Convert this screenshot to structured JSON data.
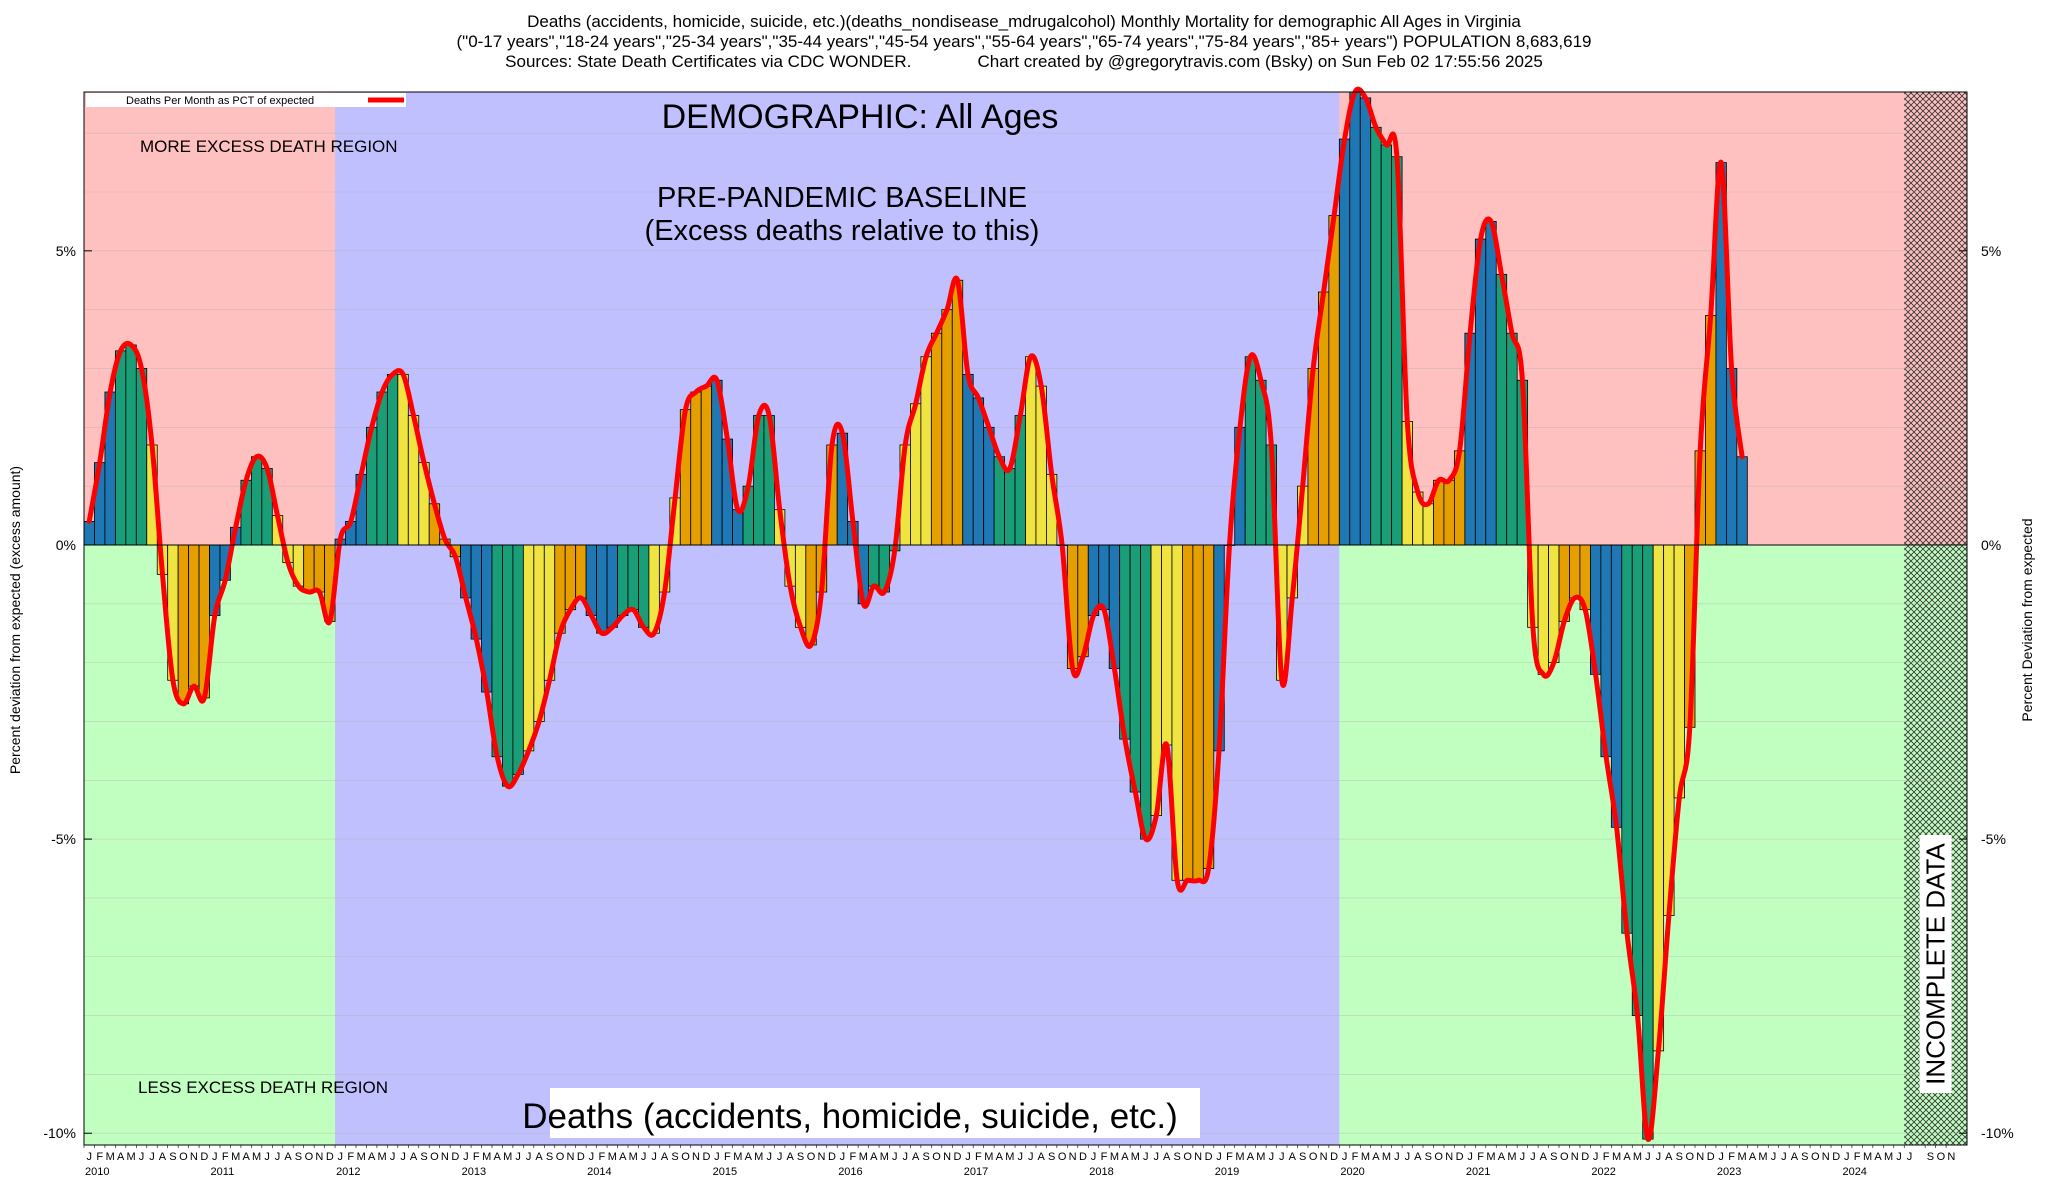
{
  "titles": {
    "line1": "Deaths (accidents, homicide, suicide, etc.)(deaths_nondisease_mdrugalcohol) Monthly Mortality for demographic All Ages in Virginia",
    "line2": "(\"0-17 years\",\"18-24 years\",\"25-34 years\",\"35-44 years\",\"45-54 years\",\"55-64 years\",\"65-74 years\",\"75-84 years\",\"85+ years\") POPULATION 8,683,619",
    "line3": "Sources: State Death Certificates via CDC WONDER.              Chart created by @gregorytravis.com (Bsky) on Sun Feb 02 17:55:56 2025"
  },
  "labels": {
    "legend": "Deaths Per Month as PCT of expected",
    "demographic": "DEMOGRAPHIC: All Ages",
    "baseline_line1": "PRE-PANDEMIC BASELINE",
    "baseline_line2": "(Excess deaths relative to this)",
    "more_region": "MORE EXCESS DEATH REGION",
    "less_region": "LESS EXCESS DEATH REGION",
    "footer": "Deaths (accidents, homicide, suicide, etc.)",
    "incomplete": "INCOMPLETE DATA",
    "ylabel_left": "Percent deviation from expected (excess amount)",
    "ylabel_right": "Percent Deviation from expected"
  },
  "colors": {
    "more_region": "#ffc0c0",
    "less_region": "#c0ffc0",
    "baseline_region": "#c0c0ff",
    "line": "#ff0000",
    "bar_palette": [
      "#1f77b4",
      "#1a9e77",
      "#f0e442",
      "#e69f00"
    ]
  },
  "chart_data": {
    "type": "bar",
    "ylim": [
      -10.2,
      7.7
    ],
    "yticks": [
      -10,
      -5,
      0,
      5
    ],
    "ytick_labels": [
      "-10%",
      "-5%",
      "0%",
      "5%"
    ],
    "month_letters": [
      "J",
      "F",
      "M",
      "A",
      "M",
      "J",
      "J",
      "A",
      "S",
      "O",
      "N",
      "D"
    ],
    "years": [
      "2010",
      "2011",
      "2012",
      "2013",
      "2014",
      "2015",
      "2016",
      "2017",
      "2018",
      "2019",
      "2020",
      "2021",
      "2022",
      "2023",
      "2024"
    ],
    "start": "2010-01",
    "baseline_period": [
      "2012-01",
      "2019-12"
    ],
    "incomplete_from": "2024-07",
    "values": [
      0.4,
      1.4,
      2.6,
      3.3,
      3.4,
      3.0,
      1.7,
      -0.5,
      -2.3,
      -2.7,
      -2.4,
      -2.6,
      -1.2,
      -0.6,
      0.3,
      1.1,
      1.5,
      1.3,
      0.5,
      -0.3,
      -0.7,
      -0.8,
      -0.8,
      -1.3,
      0.1,
      0.4,
      1.2,
      2.0,
      2.6,
      2.9,
      2.9,
      2.2,
      1.4,
      0.7,
      0.1,
      -0.2,
      -0.9,
      -1.6,
      -2.5,
      -3.6,
      -4.1,
      -3.9,
      -3.5,
      -3.0,
      -2.3,
      -1.5,
      -1.1,
      -0.9,
      -1.2,
      -1.5,
      -1.4,
      -1.2,
      -1.1,
      -1.4,
      -1.5,
      -0.8,
      0.8,
      2.3,
      2.6,
      2.7,
      2.8,
      1.8,
      0.6,
      1.0,
      2.2,
      2.2,
      0.6,
      -0.7,
      -1.4,
      -1.7,
      -0.8,
      1.7,
      1.9,
      0.4,
      -1.0,
      -0.7,
      -0.8,
      -0.1,
      1.7,
      2.4,
      3.2,
      3.6,
      4.0,
      4.5,
      2.9,
      2.5,
      2.0,
      1.5,
      1.3,
      2.2,
      3.2,
      2.7,
      1.2,
      0.0,
      -2.1,
      -1.9,
      -1.2,
      -1.1,
      -2.1,
      -3.3,
      -4.2,
      -5.0,
      -4.6,
      -3.4,
      -5.7,
      -5.7,
      -5.7,
      -5.5,
      -3.5,
      0.0,
      2.0,
      3.2,
      2.8,
      1.7,
      -2.3,
      -0.9,
      1.0,
      3.0,
      4.3,
      5.6,
      6.9,
      7.7,
      7.6,
      7.1,
      6.8,
      6.6,
      2.1,
      0.9,
      0.7,
      1.1,
      1.1,
      1.6,
      3.6,
      5.2,
      5.5,
      4.6,
      3.6,
      2.8,
      -1.4,
      -2.2,
      -2.0,
      -1.3,
      -0.9,
      -1.1,
      -2.2,
      -3.6,
      -4.8,
      -6.6,
      -8.0,
      -10.1,
      -8.6,
      -6.3,
      -4.3,
      -3.1,
      1.6,
      3.9,
      6.5,
      3.0,
      1.5
    ]
  }
}
